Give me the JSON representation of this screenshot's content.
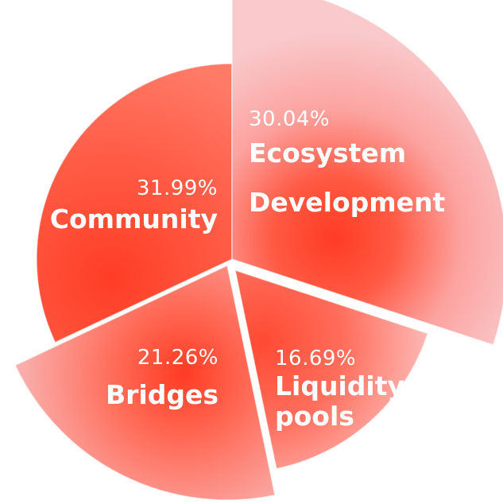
{
  "chart_data": {
    "type": "pie",
    "title": "",
    "slices": [
      {
        "label": "Ecosystem Development",
        "label_lines": [
          "Ecosystem",
          "Development"
        ],
        "value": 30.04,
        "display": "30.04%"
      },
      {
        "label": "Liquidity pools",
        "label_lines": [
          "Liquidity",
          "pools"
        ],
        "value": 16.69,
        "display": "16.69%"
      },
      {
        "label": "Bridges",
        "label_lines": [
          "Bridges"
        ],
        "value": 21.26,
        "display": "21.26%"
      },
      {
        "label": "Community",
        "label_lines": [
          "Community"
        ],
        "value": 31.99,
        "display": "31.99%"
      }
    ],
    "legend": "none",
    "colors": {
      "core": "#ff3b23",
      "mid": "#ff6b55",
      "light": "#fac7c9"
    }
  }
}
